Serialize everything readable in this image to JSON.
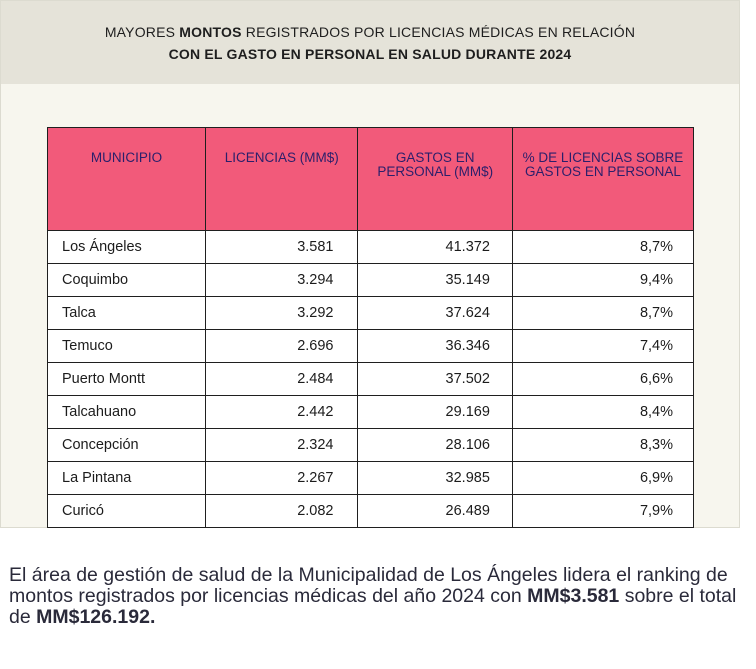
{
  "title": {
    "prefix": "MAYORES",
    "bold": "MONTOS",
    "line1_rest": "REGISTRADOS POR LICENCIAS MÉDICAS EN RELACIÓN",
    "line2": "CON EL GASTO EN PERSONAL EN SALUD DURANTE 2024"
  },
  "table": {
    "headers": [
      "MUNICIPIO",
      "LICENCIAS (MM$)",
      "GASTOS EN PERSONAL (MM$)",
      "% DE LICENCIAS SOBRE GASTOS EN PERSONAL"
    ],
    "rows": [
      [
        "Los Ángeles",
        "3.581",
        "41.372",
        "8,7%"
      ],
      [
        "Coquimbo",
        "3.294",
        "35.149",
        "9,4%"
      ],
      [
        "Talca",
        "3.292",
        "37.624",
        "8,7%"
      ],
      [
        "Temuco",
        "2.696",
        "36.346",
        "7,4%"
      ],
      [
        "Puerto Montt",
        "2.484",
        "37.502",
        "6,6%"
      ],
      [
        "Talcahuano",
        "2.442",
        "29.169",
        "8,4%"
      ],
      [
        "Concepción",
        "2.324",
        "28.106",
        "8,3%"
      ],
      [
        "La Pintana",
        "2.267",
        "32.985",
        "6,9%"
      ],
      [
        "Curicó",
        "2.082",
        "26.489",
        "7,9%"
      ]
    ]
  },
  "paragraph": {
    "text1": "El área de gestión de salud de la Municipalidad de Los Ángeles lidera el ranking de montos registrados por licencias médicas del año 2024 con",
    "amount1": "MM$3.581",
    "text2": "sobre el total de",
    "amount2": "MM$126.192."
  },
  "colors": {
    "header_bg": "#f25a7a",
    "header_text": "#2b1f6b",
    "card_bg": "#f7f6ee",
    "card_head_bg": "#e5e3d9"
  }
}
